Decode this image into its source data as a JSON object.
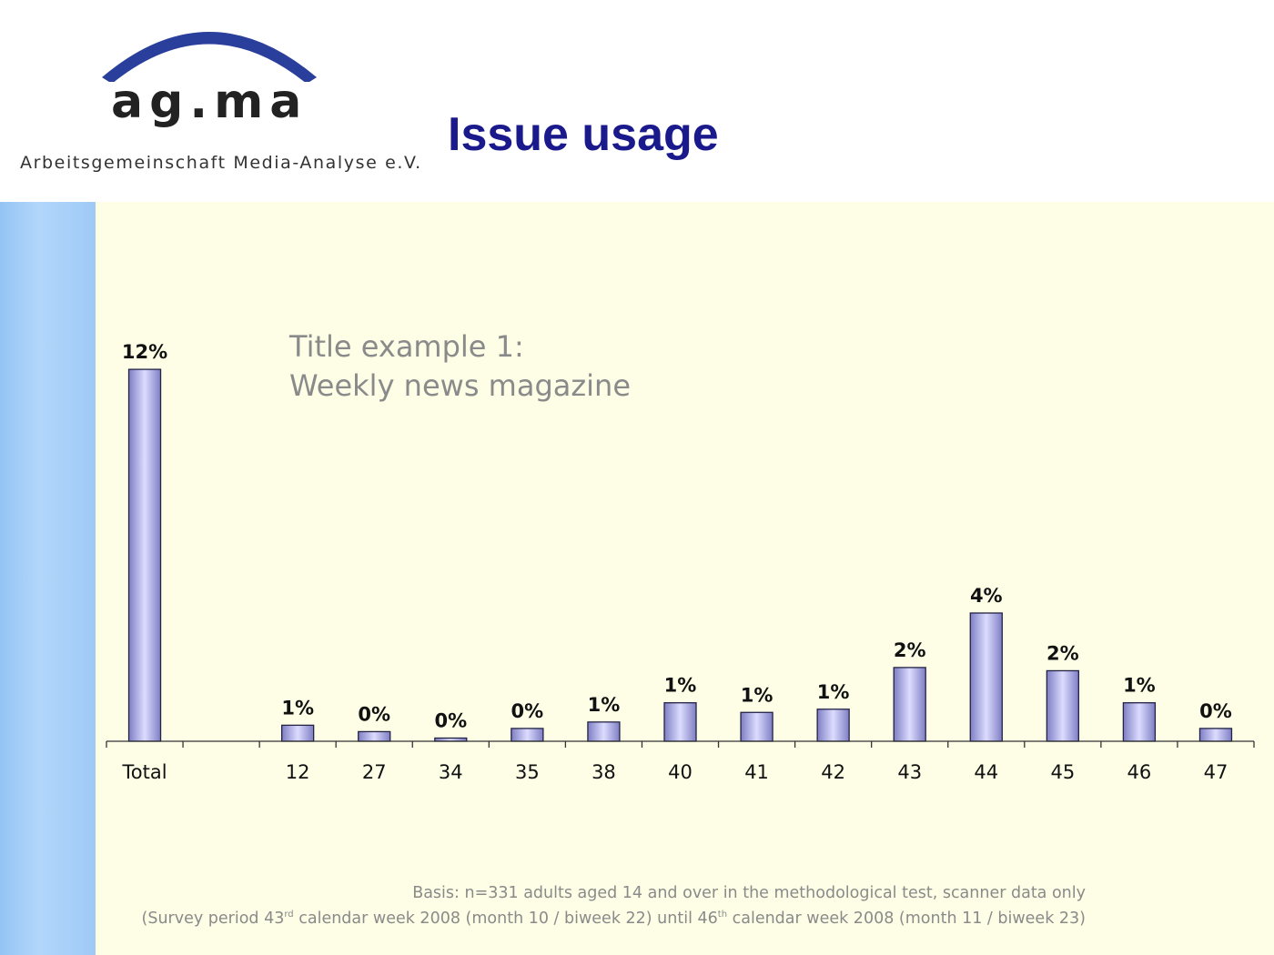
{
  "logo": {
    "mark": "ag.ma",
    "subtitle": "Arbeitsgemeinschaft Media-Analyse e.V."
  },
  "page": {
    "title": "Issue usage"
  },
  "colors": {
    "title": "#1a1a8c",
    "logo_arc": "#2a3e9c",
    "bar_fill_center": "#dcdcff",
    "bar_fill_edge": "#7e7ec4",
    "sidebar": "#9fcaf6",
    "content_bg": "#fefee6"
  },
  "chart_note": {
    "line1": "Title example 1:",
    "line2": "Weekly news magazine"
  },
  "chart_data": {
    "type": "bar",
    "categories": [
      "Total",
      "",
      "12",
      "27",
      "34",
      "35",
      "38",
      "40",
      "41",
      "42",
      "43",
      "44",
      "45",
      "46",
      "47"
    ],
    "values": [
      11.6,
      null,
      0.5,
      0.3,
      0.1,
      0.4,
      0.6,
      1.2,
      0.9,
      1.0,
      2.3,
      4.0,
      2.2,
      1.2,
      0.4
    ],
    "data_labels": [
      "12%",
      "",
      "1%",
      "0%",
      "0%",
      "0%",
      "1%",
      "1%",
      "1%",
      "1%",
      "2%",
      "4%",
      "2%",
      "1%",
      "0%"
    ],
    "ylim": [
      0,
      12
    ],
    "grid": false,
    "legend": "none"
  },
  "footnote": {
    "line1": "Basis: n=331 adults aged 14 and over in the methodological test, scanner data only",
    "line2_a": "(Survey period 43",
    "line2_sup1": "rd",
    "line2_b": " calendar week 2008 (month 10 / biweek 22) until 46",
    "line2_sup2": "th",
    "line2_c": " calendar week 2008 (month 11 / biweek 23)"
  }
}
